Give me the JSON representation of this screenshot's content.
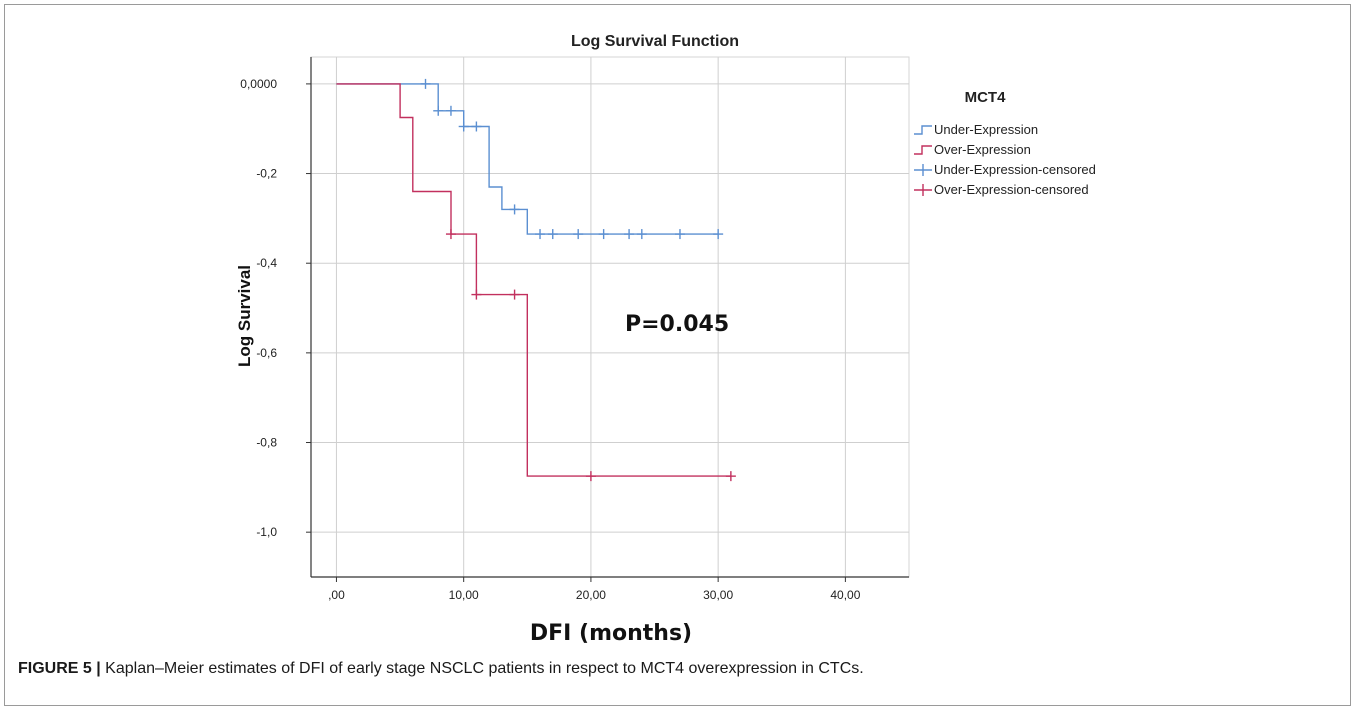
{
  "caption": {
    "label": "FIGURE 5 |",
    "text": " Kaplan–Meier estimates of DFI of early stage NSCLC patients in respect to MCT4 overexpression in CTCs."
  },
  "chart_data": {
    "type": "line",
    "step": true,
    "title": "Log Survival Function",
    "xlabel": "DFI (months)",
    "ylabel": "Log Survival",
    "xlim": [
      -2,
      45
    ],
    "ylim": [
      -1.1,
      0.06
    ],
    "x_ticks": [
      0,
      10,
      20,
      30,
      40
    ],
    "x_tick_labels": [
      ",00",
      "10,00",
      "20,00",
      "30,00",
      "40,00"
    ],
    "y_ticks": [
      0,
      -0.2,
      -0.4,
      -0.6,
      -0.8,
      -1.0
    ],
    "y_tick_labels": [
      "0,0000",
      "-0,2",
      "-0,4",
      "-0,6",
      "-0,8",
      "-1,0"
    ],
    "grid": true,
    "legend_title": "MCT4",
    "legend_position": "right",
    "legend": [
      {
        "label": "Under-Expression",
        "kind": "step",
        "color": "#5b8fd1"
      },
      {
        "label": "Over-Expression",
        "kind": "step",
        "color": "#c2305e"
      },
      {
        "label": "Under-Expression-censored",
        "kind": "censor",
        "color": "#5b8fd1"
      },
      {
        "label": "Over-Expression-censored",
        "kind": "censor",
        "color": "#c2305e"
      }
    ],
    "annotation": "P=0.045",
    "series": [
      {
        "name": "Under-Expression",
        "color": "#5b8fd1",
        "points": [
          [
            0,
            0
          ],
          [
            8,
            0
          ],
          [
            8,
            -0.06
          ],
          [
            10,
            -0.06
          ],
          [
            10,
            -0.095
          ],
          [
            12,
            -0.095
          ],
          [
            12,
            -0.23
          ],
          [
            13,
            -0.23
          ],
          [
            13,
            -0.28
          ],
          [
            15,
            -0.28
          ],
          [
            15,
            -0.335
          ],
          [
            30,
            -0.335
          ]
        ],
        "censored": [
          [
            7,
            0
          ],
          [
            8,
            -0.06
          ],
          [
            9,
            -0.06
          ],
          [
            10,
            -0.095
          ],
          [
            11,
            -0.095
          ],
          [
            14,
            -0.28
          ],
          [
            16,
            -0.335
          ],
          [
            17,
            -0.335
          ],
          [
            19,
            -0.335
          ],
          [
            21,
            -0.335
          ],
          [
            23,
            -0.335
          ],
          [
            24,
            -0.335
          ],
          [
            27,
            -0.335
          ],
          [
            30,
            -0.335
          ]
        ]
      },
      {
        "name": "Over-Expression",
        "color": "#c2305e",
        "points": [
          [
            0,
            0
          ],
          [
            5,
            0
          ],
          [
            5,
            -0.075
          ],
          [
            6,
            -0.075
          ],
          [
            6,
            -0.24
          ],
          [
            9,
            -0.24
          ],
          [
            9,
            -0.335
          ],
          [
            11,
            -0.335
          ],
          [
            11,
            -0.47
          ],
          [
            15,
            -0.47
          ],
          [
            15,
            -0.875
          ],
          [
            31,
            -0.875
          ]
        ],
        "censored": [
          [
            9,
            -0.335
          ],
          [
            11,
            -0.47
          ],
          [
            14,
            -0.47
          ],
          [
            20,
            -0.875
          ],
          [
            31,
            -0.875
          ]
        ]
      }
    ]
  }
}
